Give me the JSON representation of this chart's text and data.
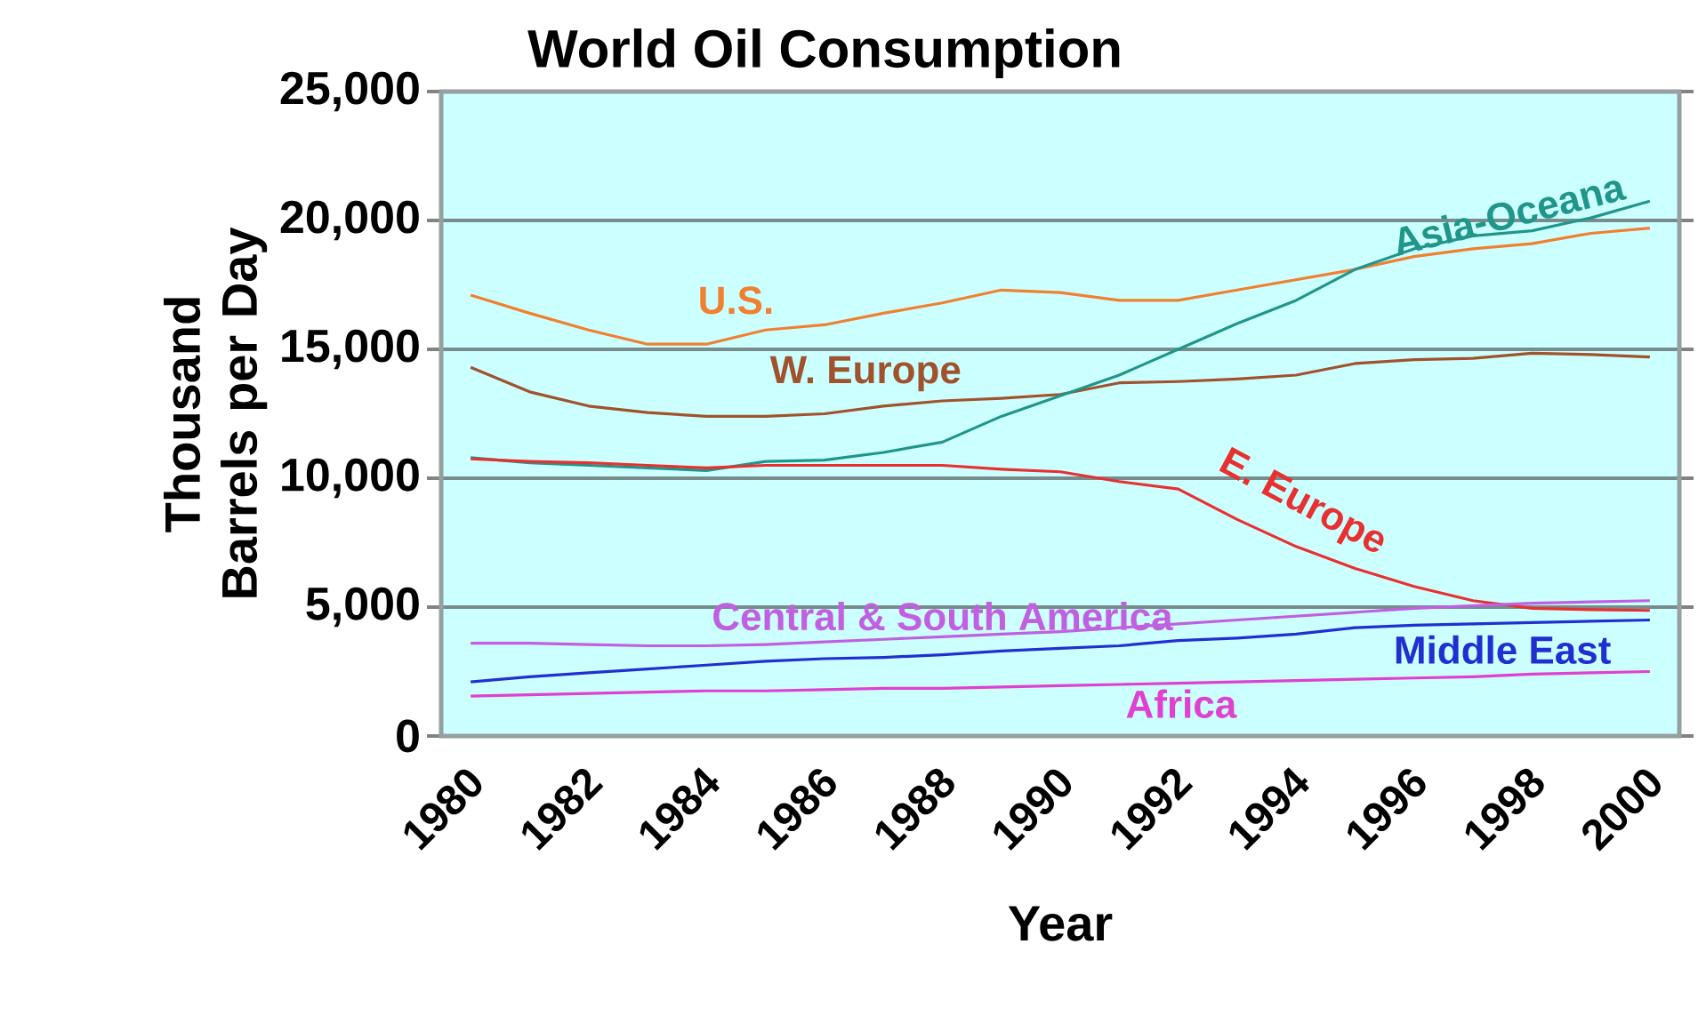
{
  "chart_data": {
    "type": "line",
    "title": "World Oil Consumption",
    "xlabel": "Year",
    "ylabel": "Thousand Barrels per Day",
    "categories": [
      "1980",
      null,
      "1982",
      null,
      "1984",
      null,
      "1986",
      null,
      "1988",
      null,
      "1990",
      null,
      "1992",
      null,
      "1994",
      null,
      "1996",
      null,
      "1998",
      null,
      "2000"
    ],
    "series": [
      {
        "name": "U.S.",
        "color": "#f08030",
        "values": [
          17100,
          16400,
          15750,
          15200,
          15200,
          15750,
          15950,
          16400,
          16800,
          17300,
          17200,
          16900,
          16900,
          17300,
          17700,
          18100,
          18600,
          18900,
          19100,
          19500,
          19700
        ]
      },
      {
        "name": "W. Europe",
        "color": "#a0522d",
        "values": [
          14300,
          13350,
          12800,
          12550,
          12400,
          12400,
          12500,
          12800,
          13000,
          13100,
          13250,
          13700,
          13750,
          13850,
          14000,
          14450,
          14600,
          14650,
          14850,
          14800,
          14700
        ]
      },
      {
        "name": "Asia-Oceana",
        "color": "#20968a",
        "values": [
          10800,
          10600,
          10500,
          10400,
          10300,
          10650,
          10700,
          11000,
          11400,
          12400,
          13200,
          14000,
          15000,
          16000,
          16900,
          18100,
          18900,
          19400,
          19600,
          20100,
          20750
        ]
      },
      {
        "name": "E. Europe",
        "color": "#e83030",
        "values": [
          10750,
          10650,
          10600,
          10500,
          10400,
          10500,
          10500,
          10500,
          10500,
          10350,
          10250,
          9870,
          9580,
          8400,
          7350,
          6500,
          5800,
          5250,
          4950,
          4900,
          4870
        ]
      },
      {
        "name": "Central & South America",
        "color": "#c060e0",
        "values": [
          3600,
          3600,
          3550,
          3500,
          3500,
          3550,
          3650,
          3750,
          3850,
          3950,
          4050,
          4200,
          4350,
          4500,
          4650,
          4800,
          4950,
          5050,
          5150,
          5200,
          5250
        ]
      },
      {
        "name": "Middle East",
        "color": "#2030d0",
        "values": [
          2100,
          2300,
          2450,
          2600,
          2750,
          2900,
          3000,
          3050,
          3150,
          3300,
          3400,
          3500,
          3700,
          3800,
          3950,
          4200,
          4300,
          4350,
          4400,
          4450,
          4500
        ]
      },
      {
        "name": "Africa",
        "color": "#e040d0",
        "values": [
          1550,
          1600,
          1650,
          1700,
          1750,
          1750,
          1800,
          1850,
          1850,
          1900,
          1950,
          2000,
          2050,
          2100,
          2150,
          2200,
          2250,
          2300,
          2400,
          2450,
          2500
        ]
      }
    ],
    "ylim": [
      0,
      25000
    ],
    "yticks": [
      {
        "value": 0,
        "label": "0"
      },
      {
        "value": 5000,
        "label": "5,000"
      },
      {
        "value": 10000,
        "label": "10,000"
      },
      {
        "value": 15000,
        "label": "15,000"
      },
      {
        "value": 20000,
        "label": "20,000"
      },
      {
        "value": 25000,
        "label": "25,000"
      }
    ],
    "grid": "y"
  }
}
